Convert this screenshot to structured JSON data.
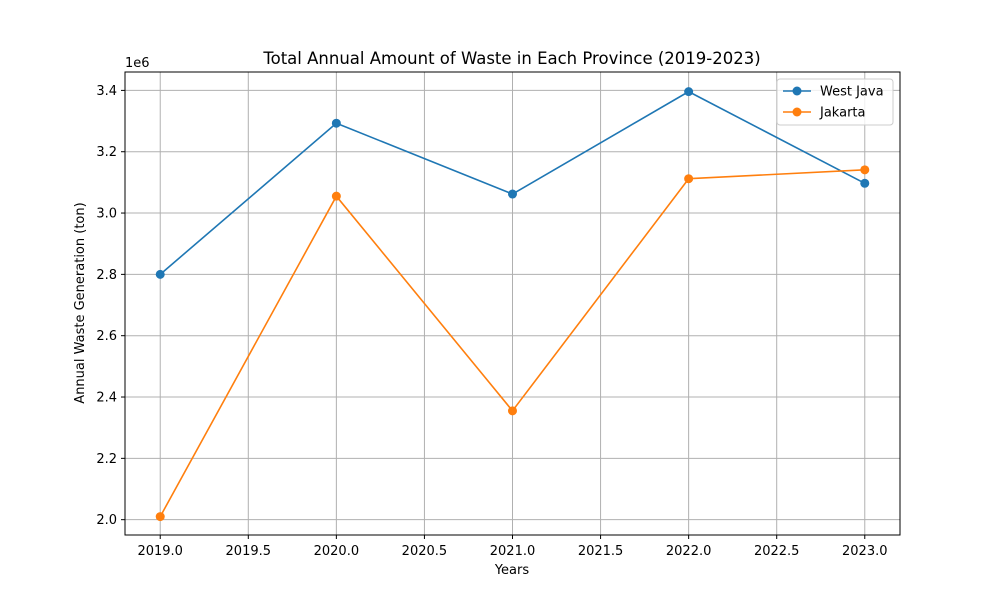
{
  "chart_data": {
    "type": "line",
    "title": "Total Annual Amount of Waste in Each Province (2019-2023)",
    "xlabel": "Years",
    "ylabel": "Annual Waste Generation (ton)",
    "y_scale_note": "1e6",
    "xlim": [
      2018.8,
      2023.2
    ],
    "ylim": [
      1950000,
      3460000
    ],
    "x_ticks": [
      2019.0,
      2019.5,
      2020.0,
      2020.5,
      2021.0,
      2021.5,
      2022.0,
      2022.5,
      2023.0
    ],
    "x_tick_labels": [
      "2019.0",
      "2019.5",
      "2020.0",
      "2020.5",
      "2021.0",
      "2021.5",
      "2022.0",
      "2022.5",
      "2023.0"
    ],
    "y_ticks": [
      2000000,
      2200000,
      2400000,
      2600000,
      2800000,
      3000000,
      3200000,
      3400000
    ],
    "y_tick_labels": [
      "2.0",
      "2.2",
      "2.4",
      "2.6",
      "2.8",
      "3.0",
      "3.2",
      "3.4"
    ],
    "grid": true,
    "legend_position": "top-right",
    "x": [
      2019,
      2020,
      2021,
      2022,
      2023
    ],
    "series": [
      {
        "name": "West Java",
        "color": "#1f77b4",
        "values": [
          2800000,
          3293000,
          3062000,
          3396000,
          3097000
        ]
      },
      {
        "name": "Jakarta",
        "color": "#ff7f0e",
        "values": [
          2010000,
          3055000,
          2355000,
          3112000,
          3141000
        ]
      }
    ]
  }
}
